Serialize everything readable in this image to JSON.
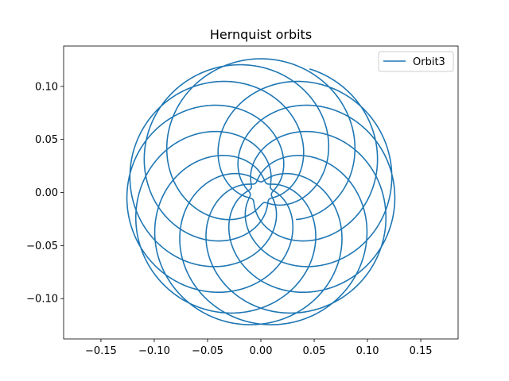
{
  "chart_data": {
    "type": "line",
    "title": "Hernquist orbits",
    "xlabel": "",
    "ylabel": "",
    "xlim": [
      -0.185,
      0.185
    ],
    "ylim": [
      -0.138,
      0.138
    ],
    "aspect": "equal",
    "grid": false,
    "legend_position": "top-right",
    "xticks": [
      -0.15,
      -0.1,
      -0.05,
      0.0,
      0.05,
      0.1,
      0.15
    ],
    "xtick_labels": [
      "−0.15",
      "−0.10",
      "−0.05",
      "0.00",
      "0.05",
      "0.10",
      "0.15"
    ],
    "yticks": [
      0.1,
      0.05,
      0.0,
      -0.05,
      -0.1
    ],
    "ytick_labels": [
      "0.10",
      "0.05",
      "0.00",
      "−0.05",
      "−0.10"
    ],
    "series": [
      {
        "name": "Orbit3",
        "color": "#1f77b4",
        "orbit": {
          "pericenter": 0.01,
          "apocenter": 0.126,
          "lobes": 11,
          "start_angle_deg": -37.3,
          "end_angle_deg": 68.4
        }
      }
    ]
  }
}
